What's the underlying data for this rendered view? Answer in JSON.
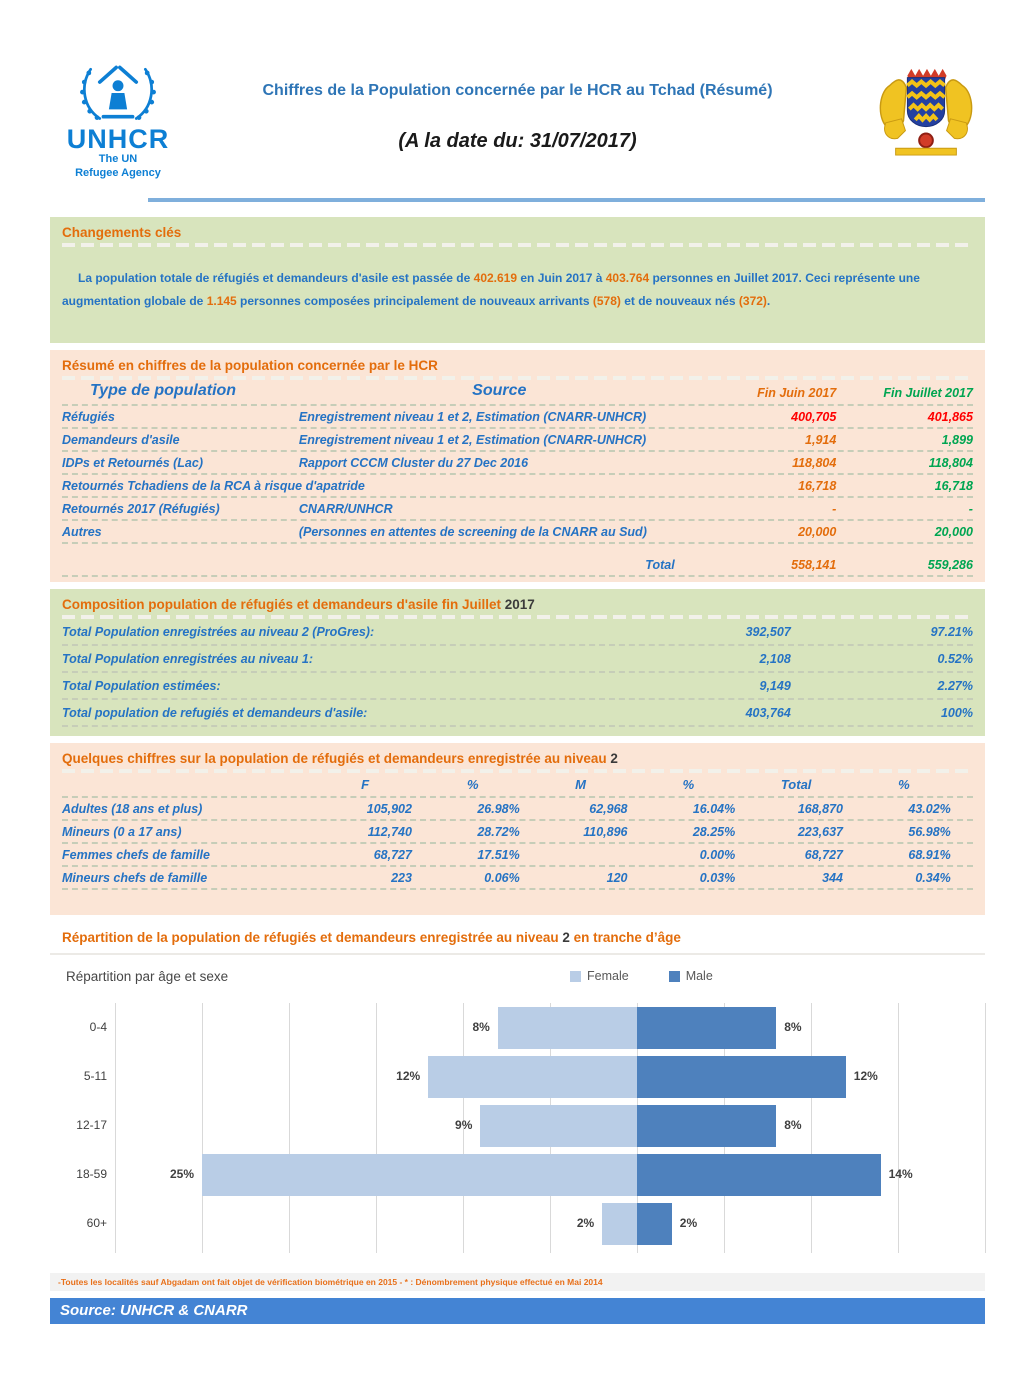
{
  "header": {
    "logo": {
      "name": "UNHCR",
      "line1": "The UN",
      "line2": "Refugee Agency"
    },
    "title": "Chiffres de la Population concernée par le HCR au Tchad (Résumé)",
    "subtitle": "(A la date du: 31/07/2017)"
  },
  "changes": {
    "title": "Changements clés",
    "paragraph_segments": [
      {
        "text": "La population totale de réfugiés et demandeurs d'asile est passée de ",
        "color": "blue"
      },
      {
        "text": "402.619",
        "color": "orange"
      },
      {
        "text": " en Juin 2017 à ",
        "color": "blue"
      },
      {
        "text": "403.764",
        "color": "orange"
      },
      {
        "text": " personnes en Juillet 2017. Ceci représente une augmentation globale de ",
        "color": "blue"
      },
      {
        "text": "1.145",
        "color": "orange"
      },
      {
        "text": " personnes composées principalement de nouveaux arrivants ",
        "color": "blue"
      },
      {
        "text": "(578)",
        "color": "orange"
      },
      {
        "text": " et de nouveaux nés ",
        "color": "blue"
      },
      {
        "text": "(372)",
        "color": "orange"
      },
      {
        "text": ".",
        "color": "blue"
      }
    ]
  },
  "summary_table": {
    "title": "Résumé en chiffres de la population concernée par le HCR",
    "columns": {
      "type": "Type de population",
      "source": "Source",
      "juin": "Fin Juin 2017",
      "juillet": "Fin Juillet 2017"
    },
    "rows": [
      {
        "type": "Réfugiés",
        "source": "Enregistrement niveau 1 et 2, Estimation (CNARR-UNHCR)",
        "juin": "400,705",
        "juillet": "401,865",
        "emphasis": true
      },
      {
        "type": "Demandeurs d'asile",
        "source": "Enregistrement niveau 1 et 2, Estimation (CNARR-UNHCR)",
        "juin": "1,914",
        "juillet": "1,899",
        "emphasis": false
      },
      {
        "type": "IDPs et Retournés (Lac)",
        "source": "Rapport CCCM Cluster du 27 Dec 2016",
        "juin": "118,804",
        "juillet": "118,804",
        "emphasis": false
      },
      {
        "type": "Retournés Tchadiens de la RCA  à risque d'apatride",
        "source": "",
        "juin": "16,718",
        "juillet": "16,718",
        "emphasis": false
      },
      {
        "type": "Retournés 2017 (Réfugiés)",
        "source": "CNARR/UNHCR",
        "juin": "-",
        "juillet": "-",
        "emphasis": false
      },
      {
        "type": "Autres",
        "source": "(Personnes en attentes de screening de la CNARR au Sud)",
        "juin": "20,000",
        "juillet": "20,000",
        "emphasis": false
      }
    ],
    "total": {
      "label": "Total",
      "juin": "558,141",
      "juillet": "559,286"
    }
  },
  "composition": {
    "title_main": "Composition population de réfugiés et demandeurs d'asile fin Juillet ",
    "title_year": "2017",
    "rows": [
      {
        "label": "Total Population enregistrées au niveau 2 (ProGres):",
        "value": "392,507",
        "pct": "97.21%",
        "bold": false
      },
      {
        "label": "Total Population enregistrées au niveau 1:",
        "value": "2,108",
        "pct": "0.52%",
        "bold": false
      },
      {
        "label": "Total Population estimées:",
        "value": "9,149",
        "pct": "2.27%",
        "bold": false
      },
      {
        "label": "Total population de refugiés et demandeurs d'asile:",
        "value": "403,764",
        "pct": "100%",
        "bold": true
      }
    ]
  },
  "figures": {
    "title_main": "Quelques chiffres sur la population de réfugiés et demandeurs enregistrée au niveau ",
    "title_num": "2",
    "columns": [
      "F",
      "%",
      "M",
      "%",
      "Total",
      "%"
    ],
    "rows": [
      {
        "label": "Adultes (18 ans et plus)",
        "cells": [
          "105,902",
          "26.98%",
          "62,968",
          "16.04%",
          "168,870",
          "43.02%"
        ]
      },
      {
        "label": "Mineurs (0 a 17 ans)",
        "cells": [
          "112,740",
          "28.72%",
          "110,896",
          "28.25%",
          "223,637",
          "56.98%"
        ]
      },
      {
        "label": "Femmes chefs de famille",
        "cells": [
          "68,727",
          "17.51%",
          "",
          "0.00%",
          "68,727",
          "68.91%"
        ]
      },
      {
        "label": "Mineurs chefs de famille",
        "cells": [
          "223",
          "0.06%",
          "120",
          "0.03%",
          "344",
          "0.34%"
        ]
      }
    ]
  },
  "chart_section": {
    "title_part1": "Répartition de la population de réfugiés et demandeurs enregistrée au niveau ",
    "title_num": "2",
    "title_part2": " en tranche d’âge"
  },
  "chart_data": {
    "type": "bar",
    "subtype": "population-pyramid",
    "orientation": "horizontal",
    "title": "Répartition par âge et sexe",
    "categories": [
      "0-4",
      "5-11",
      "12-17",
      "18-59",
      "60+"
    ],
    "series": [
      {
        "name": "Female",
        "color": "#b9cde6",
        "values": [
          8,
          12,
          9,
          25,
          2
        ]
      },
      {
        "name": "Male",
        "color": "#4e81bd",
        "values": [
          8,
          12,
          8,
          14,
          2
        ]
      }
    ],
    "value_unit": "%",
    "axis": {
      "min": -30,
      "max": 20,
      "gridline_step": 5
    },
    "grid": true,
    "legend_position": "top",
    "data_labels": true
  },
  "footer": {
    "note": "-Toutes les localités sauf Abgadam ont fait objet de vérification biométrique en 2015  - * : Dénombrement physique effectué en Mai 2014",
    "source": "Source: UNHCR & CNARR"
  }
}
